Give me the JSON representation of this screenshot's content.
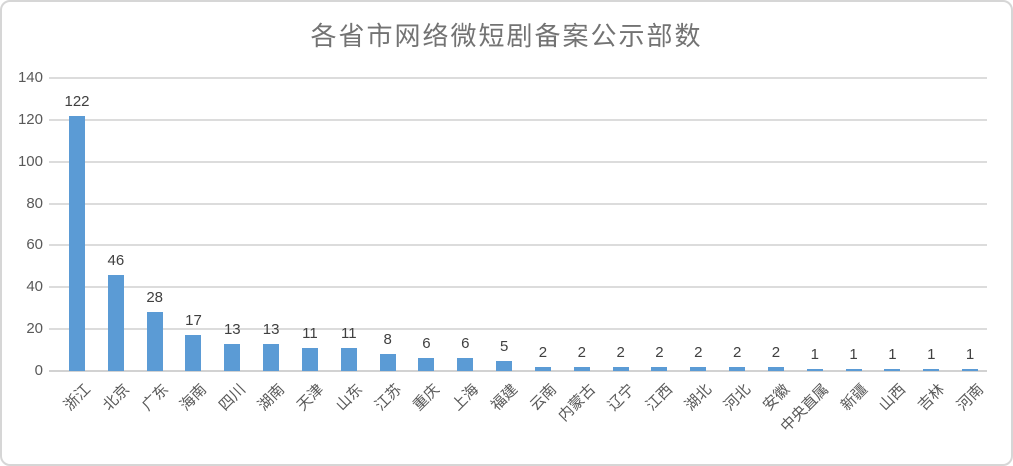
{
  "chart_data": {
    "type": "bar",
    "title": "各省市网络微短剧备案公示部数",
    "categories": [
      "浙江",
      "北京",
      "广东",
      "海南",
      "四川",
      "湖南",
      "天津",
      "山东",
      "江苏",
      "重庆",
      "上海",
      "福建",
      "云南",
      "内蒙古",
      "辽宁",
      "江西",
      "湖北",
      "河北",
      "安徽",
      "中央直属",
      "新疆",
      "山西",
      "吉林",
      "河南"
    ],
    "values": [
      122,
      46,
      28,
      17,
      13,
      13,
      11,
      11,
      8,
      6,
      6,
      5,
      2,
      2,
      2,
      2,
      2,
      2,
      2,
      1,
      1,
      1,
      1,
      1
    ],
    "xlabel": "",
    "ylabel": "",
    "ylim": [
      0,
      140
    ],
    "ytick_interval": 20,
    "ytick_labels": [
      "0",
      "20",
      "40",
      "60",
      "80",
      "100",
      "120",
      "140"
    ],
    "grid": true,
    "legend": "none",
    "data_labels_shown": true,
    "bar_color": "#5b9bd5",
    "gridline_color": "#dcdcdc",
    "axis_line_color": "#d2d2d2",
    "title_color": "#737373",
    "axis_label_color": "#595959",
    "data_label_color": "#404040",
    "frame_border_color": "#d6d6d6"
  }
}
